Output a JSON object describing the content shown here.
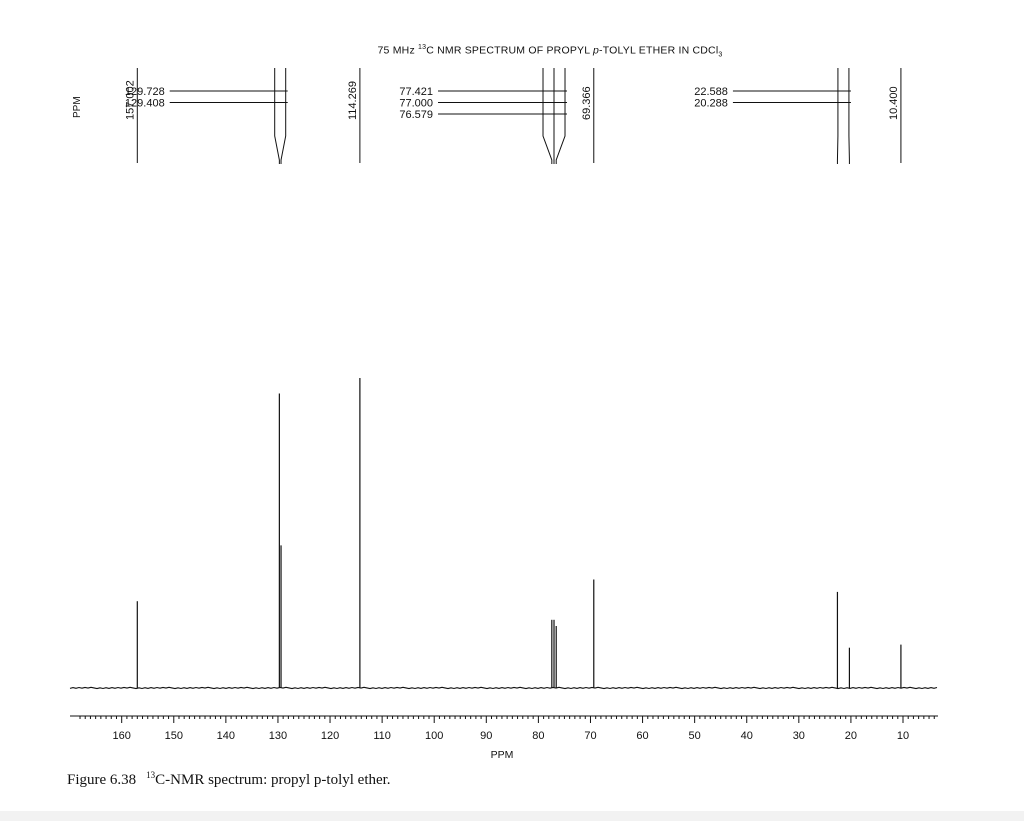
{
  "chart_data": {
    "type": "line",
    "title": {
      "prefix": "75 MHz ",
      "iso": "13",
      "mid": "C NMR SPECTRUM OF PROPYL ",
      "italic": "p",
      "suffix": "-TOLYL ETHER IN CDCl",
      "sub": "3"
    },
    "xlabel": "PPM",
    "xlim": [
      168,
      3
    ],
    "x_reversed": true,
    "xticks": [
      160,
      150,
      140,
      130,
      120,
      110,
      100,
      90,
      80,
      70,
      60,
      50,
      40,
      30,
      20,
      10
    ],
    "peak_list_label": "PPM",
    "peaks": [
      {
        "ppm": 157.002,
        "label": "157.002",
        "height": 0.28,
        "orientation": "vertical"
      },
      {
        "ppm": 129.728,
        "label": "129.728",
        "height": 0.95,
        "orientation": "horizontal",
        "group": "a",
        "row": 0
      },
      {
        "ppm": 129.408,
        "label": "129.408",
        "height": 0.46,
        "orientation": "horizontal",
        "group": "a",
        "row": 1
      },
      {
        "ppm": 114.269,
        "label": "114.269",
        "height": 1.0,
        "orientation": "vertical"
      },
      {
        "ppm": 77.421,
        "label": "77.421",
        "height": 0.22,
        "orientation": "horizontal",
        "group": "b",
        "row": 0
      },
      {
        "ppm": 77.0,
        "label": "77.000",
        "height": 0.22,
        "orientation": "horizontal",
        "group": "b",
        "row": 1
      },
      {
        "ppm": 76.579,
        "label": "76.579",
        "height": 0.2,
        "orientation": "horizontal",
        "group": "b",
        "row": 2
      },
      {
        "ppm": 69.366,
        "label": "69.366",
        "height": 0.35,
        "orientation": "vertical"
      },
      {
        "ppm": 22.588,
        "label": "22.588",
        "height": 0.31,
        "orientation": "horizontal",
        "group": "c",
        "row": 0
      },
      {
        "ppm": 20.288,
        "label": "20.288",
        "height": 0.13,
        "orientation": "horizontal",
        "group": "c",
        "row": 1
      },
      {
        "ppm": 10.4,
        "label": "10.400",
        "height": 0.14,
        "orientation": "vertical"
      }
    ]
  },
  "caption": {
    "figure": "Figure 6.38",
    "iso": "13",
    "text": "C-NMR spectrum: propyl p-tolyl ether."
  }
}
